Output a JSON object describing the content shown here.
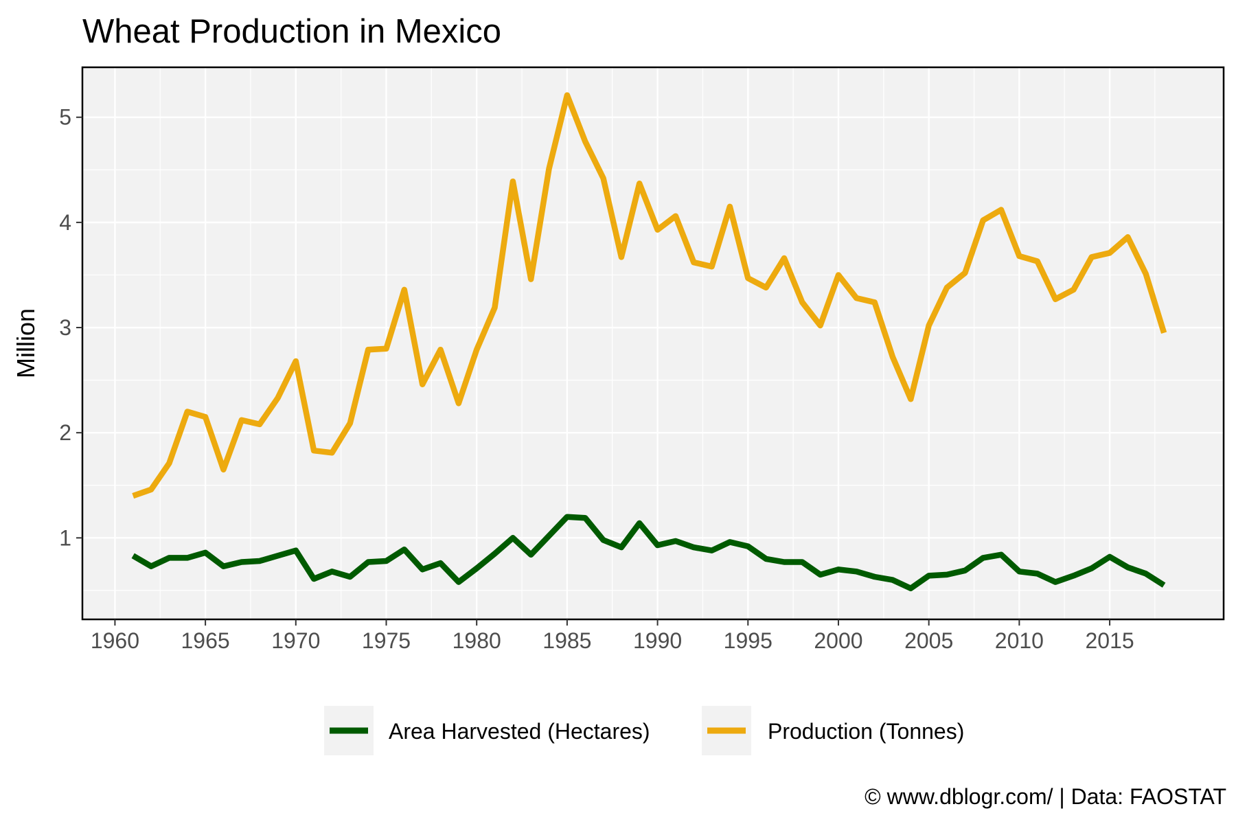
{
  "title": "Wheat Production in Mexico",
  "credit": "© www.dblogr.com/  |  Data: FAOSTAT",
  "colors": {
    "area": "#005a00",
    "production": "#edaa0f",
    "panel": "#f2f2f2",
    "grid": "#ffffff"
  },
  "chart_data": {
    "type": "line",
    "title": "Wheat Production in Mexico",
    "xlabel": "",
    "ylabel": "Million",
    "xlim": [
      1958.2,
      2021.3
    ],
    "ylim": [
      0.225,
      5.475
    ],
    "xticks": [
      1960,
      1965,
      1970,
      1975,
      1980,
      1985,
      1990,
      1995,
      2000,
      2005,
      2010,
      2015
    ],
    "yticks": [
      1,
      2,
      3,
      4,
      5
    ],
    "grid": true,
    "legend": "bottom",
    "x": [
      1961,
      1962,
      1963,
      1964,
      1965,
      1966,
      1967,
      1968,
      1969,
      1970,
      1971,
      1972,
      1973,
      1974,
      1975,
      1976,
      1977,
      1978,
      1979,
      1980,
      1981,
      1982,
      1983,
      1984,
      1985,
      1986,
      1987,
      1988,
      1989,
      1990,
      1991,
      1992,
      1993,
      1994,
      1995,
      1996,
      1997,
      1998,
      1999,
      2000,
      2001,
      2002,
      2003,
      2004,
      2005,
      2006,
      2007,
      2008,
      2009,
      2010,
      2011,
      2012,
      2013,
      2014,
      2015,
      2016,
      2017,
      2018
    ],
    "series": [
      {
        "name": "Area Harvested (Hectares)",
        "color": "#005a00",
        "values": [
          0.83,
          0.73,
          0.81,
          0.81,
          0.86,
          0.73,
          0.77,
          0.78,
          0.83,
          0.88,
          0.61,
          0.68,
          0.63,
          0.77,
          0.78,
          0.89,
          0.7,
          0.76,
          0.58,
          0.71,
          0.85,
          1.0,
          0.84,
          1.02,
          1.2,
          1.19,
          0.98,
          0.91,
          1.14,
          0.93,
          0.97,
          0.91,
          0.88,
          0.96,
          0.92,
          0.8,
          0.77,
          0.77,
          0.65,
          0.7,
          0.68,
          0.63,
          0.6,
          0.52,
          0.64,
          0.65,
          0.69,
          0.81,
          0.84,
          0.68,
          0.66,
          0.58,
          0.64,
          0.71,
          0.82,
          0.72,
          0.66,
          0.55
        ]
      },
      {
        "name": "Production (Tonnes)",
        "color": "#edaa0f",
        "values": [
          1.4,
          1.46,
          1.71,
          2.2,
          2.15,
          1.65,
          2.12,
          2.08,
          2.33,
          2.68,
          1.83,
          1.81,
          2.09,
          2.79,
          2.8,
          3.36,
          2.46,
          2.79,
          2.28,
          2.79,
          3.19,
          4.39,
          3.46,
          4.51,
          5.21,
          4.77,
          4.42,
          3.67,
          4.37,
          3.93,
          4.06,
          3.62,
          3.58,
          4.15,
          3.47,
          3.38,
          3.66,
          3.24,
          3.02,
          3.5,
          3.28,
          3.24,
          2.72,
          2.32,
          3.02,
          3.38,
          3.52,
          4.02,
          4.12,
          3.68,
          3.63,
          3.27,
          3.36,
          3.67,
          3.71,
          3.86,
          3.51,
          2.95
        ]
      }
    ]
  }
}
